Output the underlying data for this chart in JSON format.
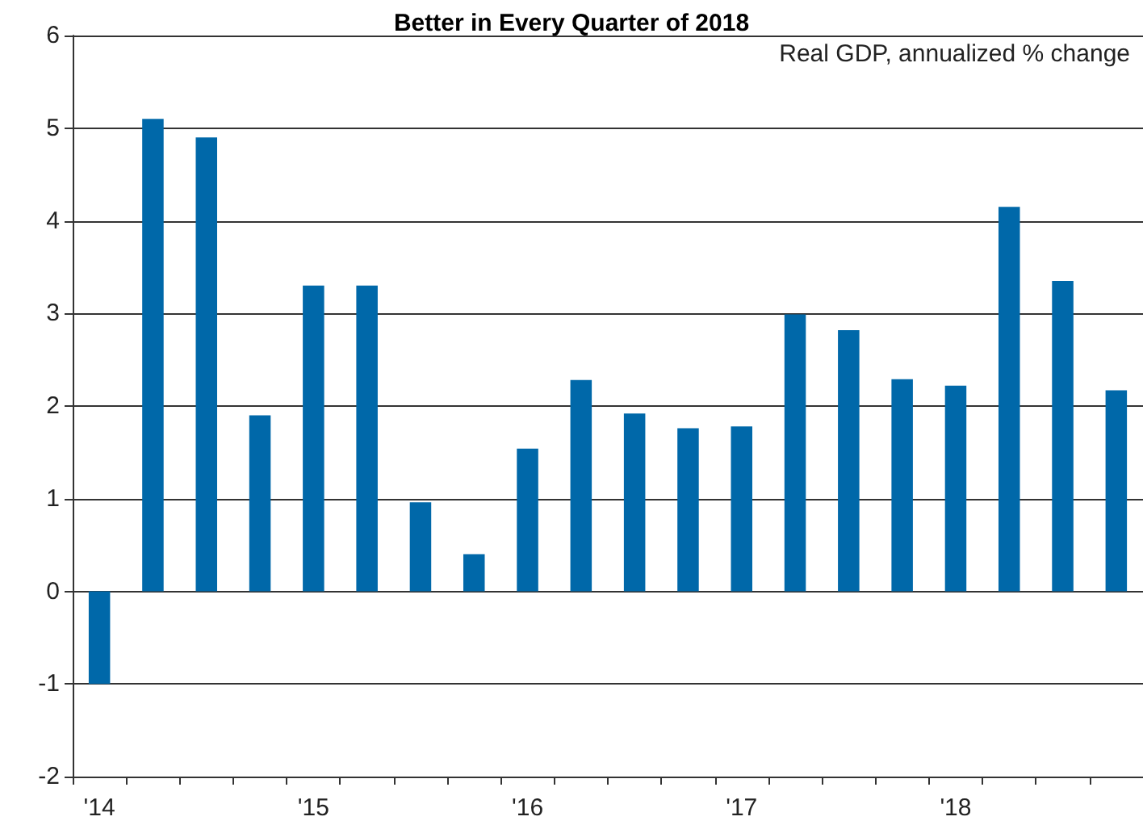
{
  "chart_data": {
    "type": "bar",
    "title": "Better in Every Quarter of 2018",
    "annotations": [
      "Real GDP, annualized % change"
    ],
    "categories": [
      "'14",
      null,
      null,
      null,
      "'15",
      null,
      null,
      null,
      "'16",
      null,
      null,
      null,
      "'17",
      null,
      null,
      null,
      "'18",
      null,
      null,
      null
    ],
    "values": [
      -1.0,
      5.1,
      4.9,
      1.9,
      3.3,
      3.3,
      0.96,
      0.4,
      1.54,
      2.28,
      1.92,
      1.76,
      1.78,
      2.99,
      2.82,
      2.29,
      2.22,
      4.15,
      3.35,
      2.17
    ],
    "color": "#0068a9",
    "ylim": [
      -2,
      6
    ],
    "yticks": [
      -2,
      -1,
      0,
      1,
      2,
      3,
      4,
      5,
      6
    ],
    "grid": "y"
  }
}
